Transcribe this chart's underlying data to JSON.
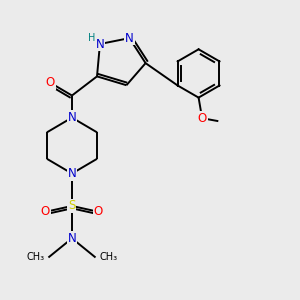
{
  "bg_color": "#ebebeb",
  "atom_colors": {
    "C": "#000000",
    "N": "#0000cc",
    "O": "#ff0000",
    "S": "#cccc00",
    "H": "#008080"
  },
  "bond_color": "#000000",
  "font_size": 8.5,
  "fig_size": [
    3.0,
    3.0
  ],
  "dpi": 100,
  "xlim": [
    0,
    10
  ],
  "ylim": [
    0,
    10
  ]
}
